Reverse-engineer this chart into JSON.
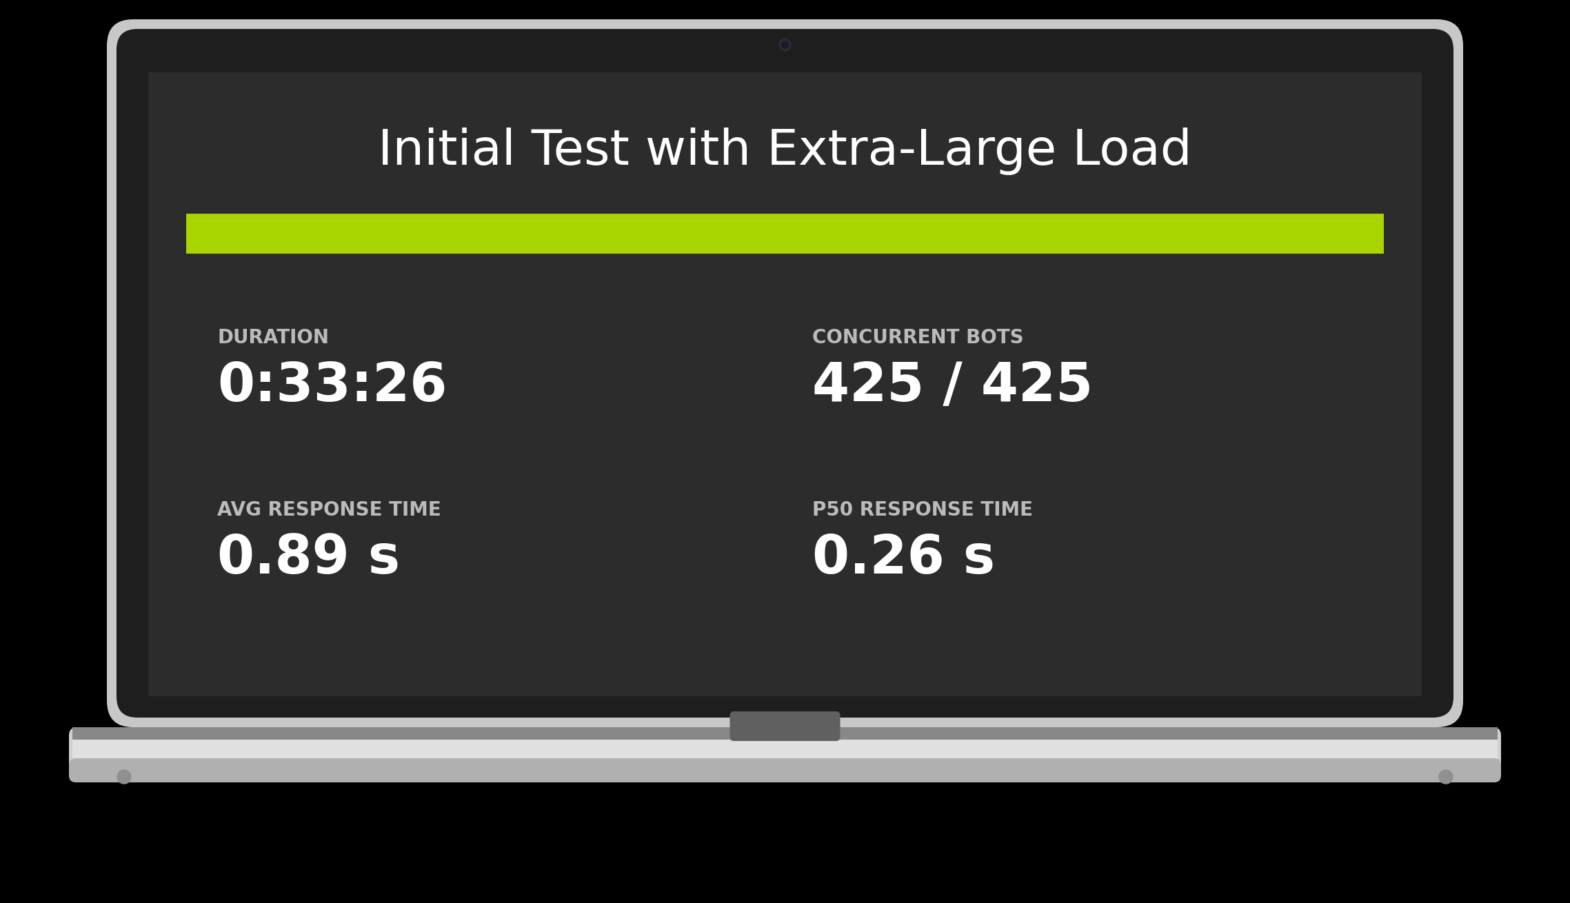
{
  "title": "Initial Test with Extra-Large Load",
  "title_fontsize": 52,
  "title_color": "#ffffff",
  "bar_color": "#a8d400",
  "label1": "DURATION",
  "value1": "0:33:26",
  "label2": "CONCURRENT BOTS",
  "value2": "425 / 425",
  "label3": "AVG RESPONSE TIME",
  "value3": "0.89 s",
  "label4": "P50 RESPONSE TIME",
  "value4": "0.26 s",
  "label_fontsize": 20,
  "value_fontsize": 56,
  "screen_bg": "#2c2c2c",
  "text_color": "#ffffff",
  "label_color": "#bbbbbb",
  "lid_silver": "#c8c8c8",
  "lid_dark": "#1e1e1e",
  "base_silver": "#d0d0d0",
  "base_dark": "#a8a8a8"
}
